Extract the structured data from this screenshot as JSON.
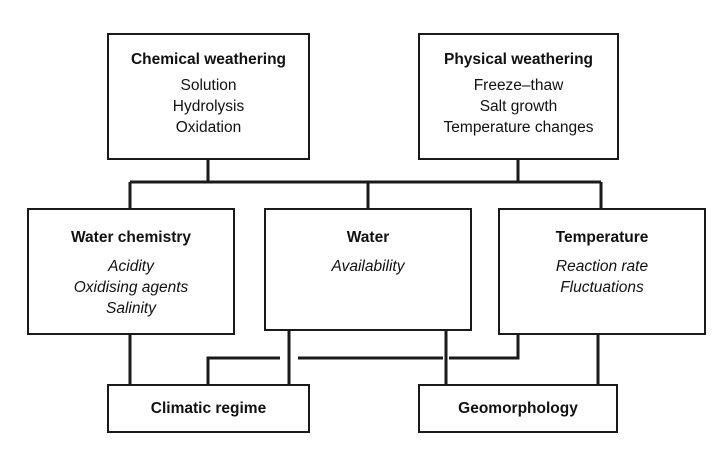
{
  "chemical_weathering": {
    "title": "Chemical weathering",
    "items": [
      "Solution",
      "Hydrolysis",
      "Oxidation"
    ]
  },
  "physical_weathering": {
    "title": "Physical weathering",
    "items": [
      "Freeze–thaw",
      "Salt growth",
      "Temperature changes"
    ]
  },
  "water_chemistry": {
    "title": "Water chemistry",
    "items": [
      "Acidity",
      "Oxidising agents",
      "Salinity"
    ]
  },
  "water": {
    "title": "Water",
    "items": [
      "Availability"
    ]
  },
  "temperature": {
    "title": "Temperature",
    "items": [
      "Reaction rate",
      "Fluctuations"
    ]
  },
  "climatic_regime": {
    "title": "Climatic regime"
  },
  "geomorphology": {
    "title": "Geomorphology"
  }
}
